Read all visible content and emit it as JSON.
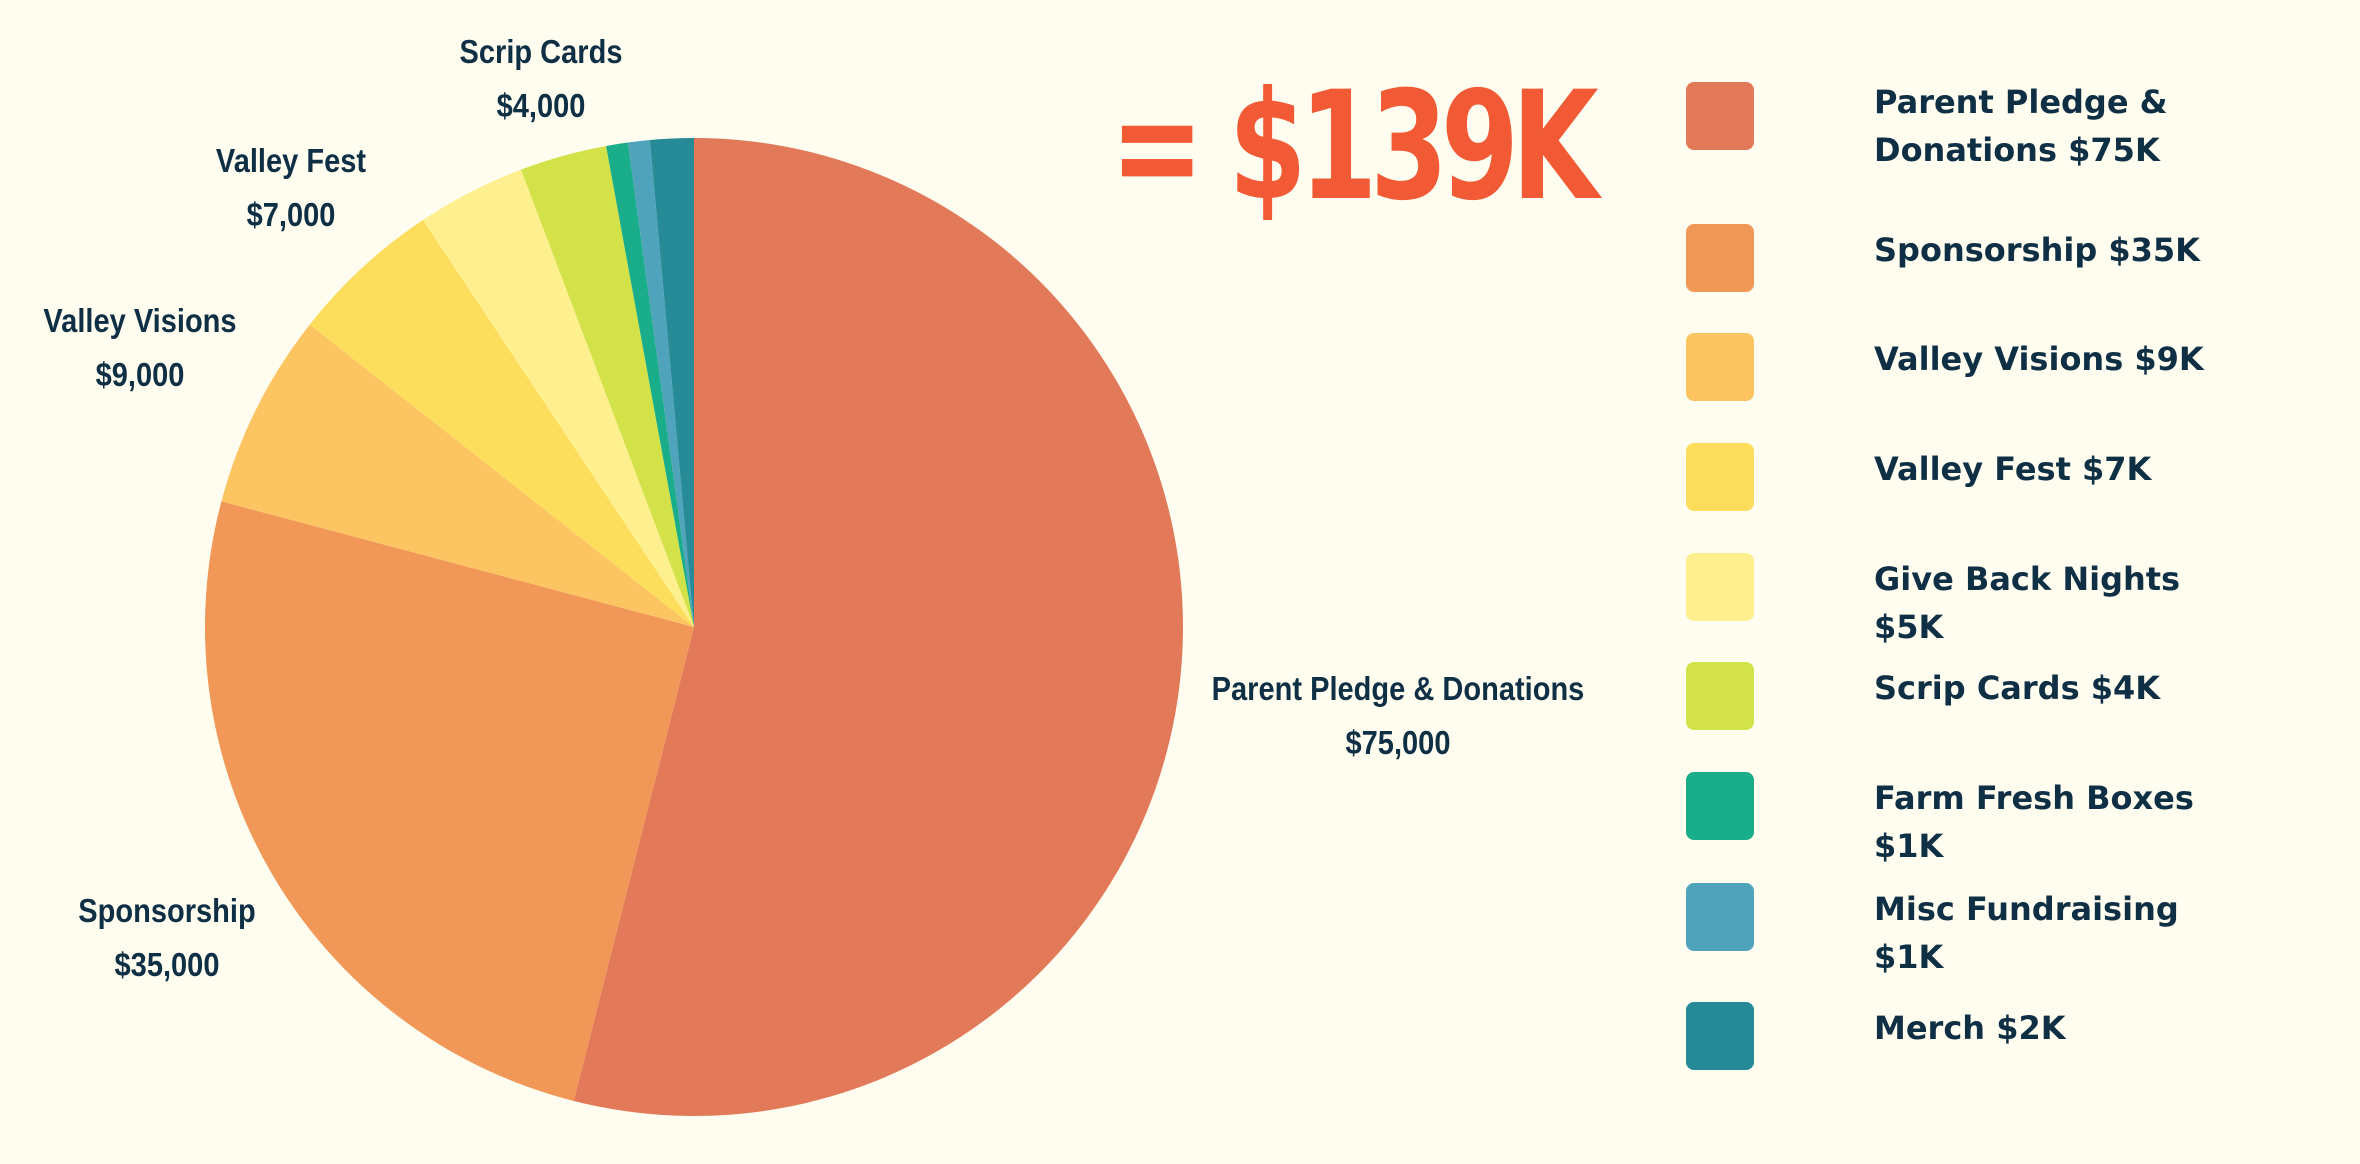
{
  "total_label": "= $139K",
  "chart_data": {
    "type": "pie",
    "title": "",
    "slices": [
      {
        "name": "Parent Pledge & Donations",
        "value": 75000,
        "label": "Parent Pledge & Donations",
        "value_label": "$75,000",
        "color": "#e27a5a"
      },
      {
        "name": "Sponsorship",
        "value": 35000,
        "label": "Sponsorship",
        "value_label": "$35,000",
        "color": "#f19858"
      },
      {
        "name": "Valley Visions",
        "value": 9000,
        "label": "Valley Visions",
        "value_label": "$9,000",
        "color": "#fdc562"
      },
      {
        "name": "Valley Fest",
        "value": 7000,
        "label": "Valley Fest",
        "value_label": "$7,000",
        "color": "#fddd5c"
      },
      {
        "name": "Give Back Nights",
        "value": 5000,
        "label": "",
        "value_label": "",
        "color": "#fef08e"
      },
      {
        "name": "Scrip Cards",
        "value": 4000,
        "label": "Scrip Cards",
        "value_label": "$4,000",
        "color": "#d4e24a"
      },
      {
        "name": "Farm Fresh Boxes",
        "value": 1000,
        "label": "",
        "value_label": "",
        "color": "#19ad8a"
      },
      {
        "name": "Misc Fundraising",
        "value": 1000,
        "label": "",
        "value_label": "",
        "color": "#4fa3ba"
      },
      {
        "name": "Merch",
        "value": 2000,
        "label": "",
        "value_label": "",
        "color": "#268a97"
      }
    ],
    "legend": [
      {
        "label": "Parent Pledge & Donations $75K",
        "color": "#e27a5a"
      },
      {
        "label": "Sponsorship $35K",
        "color": "#f19858"
      },
      {
        "label": "Valley Visions $9K",
        "color": "#fdc562"
      },
      {
        "label": "Valley Fest $7K",
        "color": "#fddd5c"
      },
      {
        "label": "Give Back Nights $5K",
        "color": "#fef08e"
      },
      {
        "label": "Scrip Cards $4K",
        "color": "#d4e24a"
      },
      {
        "label": "Farm Fresh Boxes $1K",
        "color": "#19ad8a"
      },
      {
        "label": "Misc Fundraising $1K",
        "color": "#4fa3ba"
      },
      {
        "label": "Merch $2K",
        "color": "#268a97"
      }
    ],
    "legend_position": "right"
  }
}
